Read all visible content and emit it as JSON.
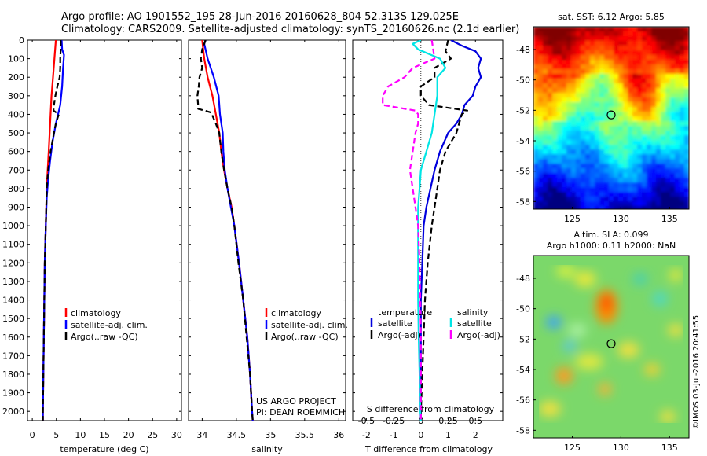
{
  "title_line1": "Argo profile: AO 1901552_195 28-Jun-2016 20160628_804 52.313S 129.025E",
  "title_line2": "Climatology: CARS2009. Satellite-adjusted climatology: synTS_20160626.nc (2.1d earlier)",
  "colors": {
    "climatology": "#ff0000",
    "satellite": "#0000ff",
    "argo": "#000000",
    "t_sat": "#0000dd",
    "s_sat": "#00e5e5",
    "s_argo": "#ff00ff"
  },
  "depth_ticks": [
    "0",
    "100",
    "200",
    "300",
    "400",
    "500",
    "600",
    "700",
    "800",
    "900",
    "1000",
    "1100",
    "1200",
    "1300",
    "1400",
    "1500",
    "1600",
    "1700",
    "1800",
    "1900",
    "2000"
  ],
  "chart_data": [
    {
      "type": "line",
      "xlabel": "temperature (deg C)",
      "xlim": [
        -1,
        31
      ],
      "ylim": [
        2050,
        0
      ],
      "xticks": [
        "0",
        "5",
        "10",
        "15",
        "20",
        "25",
        "30"
      ],
      "legend": [
        "climatology",
        "satellite-adj. clim.",
        "Argo(..raw -QC)"
      ],
      "series": [
        {
          "name": "climatology",
          "color": "#ff0000",
          "depth": [
            0,
            100,
            200,
            300,
            400,
            500,
            600,
            700,
            800,
            900,
            1000,
            1200,
            1400,
            1600,
            1800,
            2000,
            2050
          ],
          "values": [
            4.9,
            4.6,
            4.3,
            4.0,
            3.8,
            3.6,
            3.4,
            3.2,
            3.0,
            2.9,
            2.8,
            2.6,
            2.5,
            2.4,
            2.3,
            2.2,
            2.2
          ]
        },
        {
          "name": "satellite-adj. clim.",
          "color": "#0000ff",
          "depth": [
            0,
            50,
            80,
            150,
            250,
            350,
            450,
            550,
            650,
            750,
            850,
            1000,
            1200,
            1400,
            1600,
            1800,
            2000,
            2050
          ],
          "values": [
            6.1,
            6.2,
            6.6,
            6.4,
            6.2,
            5.8,
            4.9,
            4.2,
            3.7,
            3.3,
            3.0,
            2.8,
            2.6,
            2.5,
            2.4,
            2.3,
            2.2,
            2.2
          ]
        },
        {
          "name": "Argo(..raw -QC)",
          "color": "#000000",
          "depth": [
            0,
            50,
            100,
            150,
            200,
            250,
            300,
            350,
            380,
            400,
            450,
            500,
            600,
            700,
            800,
            900,
            1000,
            1200,
            1400,
            1600,
            1800,
            2000,
            2050
          ],
          "values": [
            5.9,
            5.9,
            5.8,
            5.8,
            5.7,
            5.2,
            4.8,
            4.5,
            4.4,
            5.5,
            4.9,
            4.5,
            3.8,
            3.3,
            3.0,
            2.9,
            2.8,
            2.6,
            2.5,
            2.4,
            2.3,
            2.2,
            2.2
          ]
        }
      ]
    },
    {
      "type": "line",
      "xlabel": "salinity",
      "xlim": [
        33.8,
        36.1
      ],
      "ylim": [
        2050,
        0
      ],
      "xticks": [
        "34",
        "34.5",
        "35",
        "35.5",
        "36"
      ],
      "legend": [
        "climatology",
        "satellite-adj. clim.",
        "Argo(..raw -QC)"
      ],
      "series": [
        {
          "name": "climatology",
          "color": "#ff0000",
          "depth": [
            0,
            100,
            200,
            300,
            400,
            500,
            600,
            700,
            800,
            900,
            1000,
            1200,
            1400,
            1600,
            1800,
            2000,
            2050
          ],
          "values": [
            34.0,
            34.03,
            34.08,
            34.15,
            34.2,
            34.25,
            34.28,
            34.32,
            34.37,
            34.43,
            34.47,
            34.54,
            34.6,
            34.66,
            34.7,
            34.73,
            34.74
          ]
        },
        {
          "name": "satellite-adj. clim.",
          "color": "#0000ff",
          "depth": [
            0,
            20,
            100,
            200,
            300,
            400,
            500,
            600,
            700,
            800,
            900,
            1000,
            1200,
            1400,
            1600,
            1800,
            2000,
            2050
          ],
          "values": [
            34.05,
            34.03,
            34.08,
            34.17,
            34.24,
            34.26,
            34.3,
            34.31,
            34.33,
            34.37,
            34.42,
            34.47,
            34.54,
            34.6,
            34.66,
            34.7,
            34.73,
            34.74
          ]
        },
        {
          "name": "Argo(..raw -QC)",
          "color": "#000000",
          "depth": [
            0,
            50,
            100,
            150,
            200,
            250,
            300,
            350,
            370,
            390,
            450,
            500,
            600,
            700,
            800,
            900,
            1000,
            1200,
            1400,
            1600,
            1800,
            2000,
            2050
          ],
          "values": [
            34.05,
            34.0,
            33.98,
            34.0,
            33.96,
            33.95,
            33.93,
            33.94,
            33.94,
            34.13,
            34.2,
            34.25,
            34.28,
            34.32,
            34.37,
            34.43,
            34.47,
            34.53,
            34.6,
            34.65,
            34.7,
            34.73,
            34.74
          ]
        }
      ],
      "annotations": [
        "US ARGO PROJECT",
        "PI: DEAN ROEMMICH"
      ]
    },
    {
      "type": "line",
      "xlabel": "T difference from climatology",
      "xlabel_top": "S difference from climatology",
      "xlim": [
        -2.5,
        3
      ],
      "ylim": [
        2050,
        0
      ],
      "xticks": [
        "-2",
        "-1",
        "0",
        "1",
        "2"
      ],
      "xticks_top": [
        "-0.5",
        "-0.25",
        "0",
        "0.25",
        "0.5"
      ],
      "xticks_top_pos": [
        -2,
        -1,
        0,
        1,
        2
      ],
      "legend_left": {
        "heading": "temperature",
        "items": [
          "satellite",
          "Argo(-adj)"
        ]
      },
      "legend_right": {
        "heading": "salinity",
        "items": [
          "satellite",
          "Argo(-adj)"
        ]
      },
      "series": [
        {
          "name": "temperature satellite",
          "color": "#0000dd",
          "dash": false,
          "depth": [
            0,
            30,
            60,
            100,
            150,
            200,
            250,
            300,
            350,
            400,
            450,
            500,
            600,
            700,
            800,
            900,
            1000,
            1200,
            1400,
            1600,
            1800,
            2000,
            2050
          ],
          "values": [
            1.1,
            1.5,
            2.0,
            2.2,
            2.1,
            2.2,
            2.0,
            1.9,
            1.6,
            1.5,
            1.3,
            1.0,
            0.7,
            0.5,
            0.35,
            0.2,
            0.1,
            0.05,
            0.0,
            0.0,
            0.0,
            0.0,
            0.0
          ]
        },
        {
          "name": "temperature Argo(-adj)",
          "color": "#000000",
          "dash": true,
          "depth": [
            0,
            60,
            100,
            150,
            200,
            250,
            300,
            350,
            380,
            400,
            450,
            500,
            550,
            600,
            700,
            800,
            900,
            1000,
            1200,
            1400,
            1600,
            1800,
            2000,
            2050
          ],
          "values": [
            1.0,
            0.9,
            1.1,
            0.5,
            0.5,
            0.0,
            0.0,
            0.3,
            1.7,
            1.5,
            1.4,
            1.3,
            1.1,
            0.9,
            0.7,
            0.6,
            0.5,
            0.4,
            0.25,
            0.15,
            0.1,
            0.05,
            0.0,
            0.0
          ]
        },
        {
          "name": "salinity satellite",
          "color": "#00e5e5",
          "dash": false,
          "depth": [
            0,
            20,
            50,
            100,
            150,
            200,
            300,
            400,
            500,
            600,
            700,
            800,
            900,
            1000,
            1200,
            1400,
            1600,
            1800,
            2000,
            2050
          ],
          "values": [
            0.0,
            -0.3,
            -0.1,
            0.7,
            0.9,
            0.6,
            0.6,
            0.5,
            0.4,
            0.2,
            0.0,
            -0.05,
            -0.1,
            -0.1,
            -0.1,
            -0.1,
            -0.08,
            -0.05,
            -0.02,
            0.0
          ]
        },
        {
          "name": "salinity Argo(-adj)",
          "color": "#ff00ff",
          "dash": true,
          "depth": [
            0,
            100,
            150,
            200,
            250,
            300,
            350,
            380,
            400,
            450,
            500,
            600,
            700,
            800,
            900,
            1000,
            1200,
            1400,
            1600,
            1800,
            2000,
            2050
          ],
          "values": [
            0.4,
            0.5,
            -0.3,
            -0.6,
            -1.2,
            -1.4,
            -1.4,
            -0.2,
            -0.1,
            -0.1,
            -0.2,
            -0.3,
            -0.4,
            -0.3,
            -0.2,
            -0.1,
            -0.05,
            -0.02,
            0.0,
            0.0,
            0.0,
            0.0
          ]
        }
      ]
    },
    {
      "type": "heatmap",
      "title": "sat. SST: 6.12 Argo: 5.85",
      "xticks": [
        "125",
        "130",
        "135"
      ],
      "yticks": [
        "-48",
        "-50",
        "-52",
        "-54",
        "-56",
        "-58"
      ],
      "xlim": [
        121,
        137
      ],
      "ylim": [
        -58.5,
        -46.5
      ],
      "marker": {
        "lon": 129.0,
        "lat": -52.3
      }
    },
    {
      "type": "heatmap",
      "title": "Altim. SLA: 0.099",
      "subtitle": "Argo h1000: 0.11 h2000: NaN",
      "xticks": [
        "125",
        "130",
        "135"
      ],
      "yticks": [
        "-48",
        "-50",
        "-52",
        "-54",
        "-56",
        "-58"
      ],
      "xlim": [
        121,
        137
      ],
      "ylim": [
        -58.5,
        -46.5
      ],
      "marker": {
        "lon": 129.0,
        "lat": -52.3
      },
      "watermark": "©IMOS 03-Jul-2016 20:41:55"
    }
  ]
}
